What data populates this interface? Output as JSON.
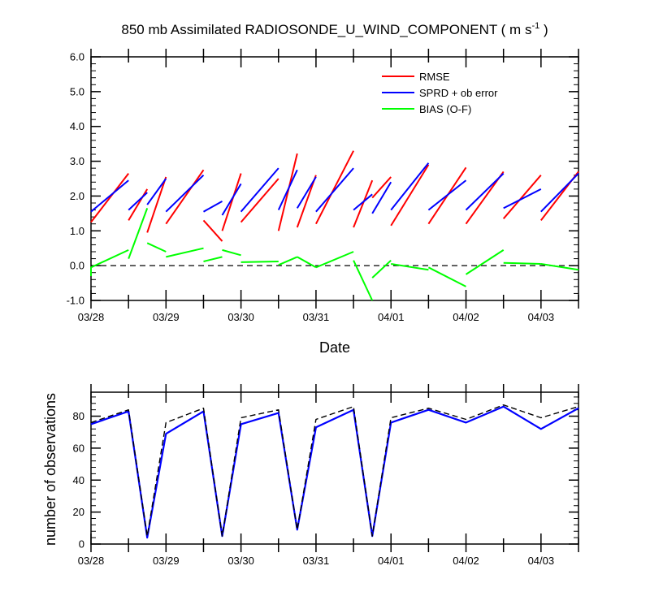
{
  "title_main": "850 mb Assimilated RADIOSONDE_U_WIND_COMPONENT ( m s",
  "title_sup": "-1",
  "title_end": " )",
  "chart_data": [
    {
      "type": "line",
      "xlabel": "Date",
      "ylabel": "",
      "x_ticks": [
        "03/28",
        "03/29",
        "03/30",
        "03/31",
        "04/01",
        "04/02",
        "04/03"
      ],
      "xlim": [
        0,
        6.5
      ],
      "ylim": [
        -1.0,
        6.0
      ],
      "y_ticks": [
        "-1.0",
        "0.0",
        "1.0",
        "2.0",
        "3.0",
        "4.0",
        "5.0",
        "6.0"
      ],
      "legend_position": "top-right",
      "zero_line": true,
      "series": [
        {
          "name": "RMSE",
          "color": "#ff0000",
          "segments": [
            [
              [
                0,
                1.25
              ],
              [
                0.5,
                2.65
              ]
            ],
            [
              [
                0.5,
                1.3
              ],
              [
                0.75,
                2.2
              ]
            ],
            [
              [
                0.75,
                0.95
              ],
              [
                1.0,
                2.55
              ]
            ],
            [
              [
                1.0,
                1.2
              ],
              [
                1.5,
                2.75
              ]
            ],
            [
              [
                1.5,
                1.3
              ],
              [
                1.75,
                0.7
              ]
            ],
            [
              [
                1.75,
                1.0
              ],
              [
                2.0,
                2.65
              ]
            ],
            [
              [
                2.0,
                1.25
              ],
              [
                2.5,
                2.5
              ]
            ],
            [
              [
                2.5,
                1.0
              ],
              [
                2.75,
                3.22
              ]
            ],
            [
              [
                2.75,
                1.1
              ],
              [
                3.0,
                2.6
              ]
            ],
            [
              [
                3.0,
                1.2
              ],
              [
                3.5,
                3.3
              ]
            ],
            [
              [
                3.5,
                1.1
              ],
              [
                3.75,
                2.45
              ]
            ],
            [
              [
                3.75,
                1.95
              ],
              [
                4.0,
                2.55
              ]
            ],
            [
              [
                4.0,
                1.15
              ],
              [
                4.5,
                2.9
              ]
            ],
            [
              [
                4.5,
                1.2
              ],
              [
                5.0,
                2.82
              ]
            ],
            [
              [
                5.0,
                1.2
              ],
              [
                5.5,
                2.7
              ]
            ],
            [
              [
                5.5,
                1.35
              ],
              [
                6.0,
                2.6
              ]
            ],
            [
              [
                6.0,
                1.3
              ],
              [
                6.5,
                2.7
              ]
            ]
          ]
        },
        {
          "name": "SPRD + ob error",
          "color": "#0000ff",
          "segments": [
            [
              [
                0,
                1.55
              ],
              [
                0.5,
                2.45
              ]
            ],
            [
              [
                0.5,
                1.6
              ],
              [
                0.75,
                2.1
              ]
            ],
            [
              [
                0.75,
                1.75
              ],
              [
                1.0,
                2.5
              ]
            ],
            [
              [
                1.0,
                1.55
              ],
              [
                1.5,
                2.6
              ]
            ],
            [
              [
                1.5,
                1.55
              ],
              [
                1.75,
                1.85
              ]
            ],
            [
              [
                1.75,
                1.45
              ],
              [
                2.0,
                2.35
              ]
            ],
            [
              [
                2.0,
                1.55
              ],
              [
                2.5,
                2.8
              ]
            ],
            [
              [
                2.5,
                1.6
              ],
              [
                2.75,
                2.75
              ]
            ],
            [
              [
                2.75,
                1.65
              ],
              [
                3.0,
                2.55
              ]
            ],
            [
              [
                3.0,
                1.55
              ],
              [
                3.5,
                2.8
              ]
            ],
            [
              [
                3.5,
                1.6
              ],
              [
                3.75,
                2.05
              ]
            ],
            [
              [
                3.75,
                1.5
              ],
              [
                4.0,
                2.4
              ]
            ],
            [
              [
                4.0,
                1.6
              ],
              [
                4.5,
                2.95
              ]
            ],
            [
              [
                4.5,
                1.6
              ],
              [
                5.0,
                2.45
              ]
            ],
            [
              [
                5.0,
                1.6
              ],
              [
                5.5,
                2.65
              ]
            ],
            [
              [
                5.5,
                1.65
              ],
              [
                6.0,
                2.2
              ]
            ],
            [
              [
                6.0,
                1.55
              ],
              [
                6.5,
                2.65
              ]
            ]
          ]
        },
        {
          "name": "BIAS (O-F)",
          "color": "#00ff00",
          "segments": [
            [
              [
                0,
                -0.3
              ],
              [
                0,
                -0.05
              ],
              [
                0.5,
                0.45
              ]
            ],
            [
              [
                0.5,
                0.2
              ],
              [
                0.75,
                1.65
              ]
            ],
            [
              [
                0.75,
                0.65
              ],
              [
                1.0,
                0.4
              ]
            ],
            [
              [
                1.0,
                0.25
              ],
              [
                1.5,
                0.5
              ]
            ],
            [
              [
                1.5,
                0.12
              ],
              [
                1.75,
                0.25
              ]
            ],
            [
              [
                1.75,
                0.45
              ],
              [
                2.0,
                0.3
              ]
            ],
            [
              [
                2.0,
                0.1
              ],
              [
                2.5,
                0.12
              ]
            ],
            [
              [
                2.5,
                0.02
              ],
              [
                2.75,
                0.25
              ]
            ],
            [
              [
                2.75,
                0.25
              ],
              [
                3.0,
                -0.05
              ]
            ],
            [
              [
                3.0,
                -0.05
              ],
              [
                3.5,
                0.4
              ]
            ],
            [
              [
                3.5,
                0.15
              ],
              [
                3.75,
                -1.0
              ]
            ],
            [
              [
                3.75,
                -0.35
              ],
              [
                4.0,
                0.15
              ]
            ],
            [
              [
                4.0,
                0.05
              ],
              [
                4.5,
                -0.12
              ]
            ],
            [
              [
                4.5,
                -0.05
              ],
              [
                5.0,
                -0.6
              ]
            ],
            [
              [
                5.0,
                -0.25
              ],
              [
                5.5,
                0.45
              ]
            ],
            [
              [
                5.5,
                0.08
              ],
              [
                6.0,
                0.05
              ]
            ],
            [
              [
                6.0,
                0.05
              ],
              [
                6.5,
                -0.12
              ]
            ]
          ]
        }
      ]
    },
    {
      "type": "line",
      "xlabel": "",
      "ylabel": "number of observations",
      "x_ticks": [
        "03/28",
        "03/29",
        "03/30",
        "03/31",
        "04/01",
        "04/02",
        "04/03"
      ],
      "xlim": [
        0,
        6.5
      ],
      "ylim": [
        0,
        95
      ],
      "y_ticks": [
        "0",
        "20",
        "40",
        "60",
        "80"
      ],
      "series": [
        {
          "name": "",
          "color": "#0000ff",
          "style": "solid",
          "x": [
            0,
            0.5,
            0.75,
            1.0,
            1.5,
            1.75,
            2.0,
            2.5,
            2.75,
            3.0,
            3.5,
            3.75,
            4.0,
            4.5,
            5.0,
            5.5,
            6.0,
            6.5
          ],
          "values": [
            75,
            83,
            4,
            69,
            83,
            5,
            75,
            82,
            9,
            73,
            84,
            5,
            76,
            84,
            76,
            86,
            72,
            85
          ]
        },
        {
          "name": "",
          "color": "#000000",
          "style": "dashed",
          "x": [
            0,
            0.5,
            0.75,
            1.0,
            1.5,
            1.75,
            2.0,
            2.5,
            2.75,
            3.0,
            3.5,
            3.75,
            4.0,
            4.5,
            5.0,
            5.5,
            6.0,
            6.5
          ],
          "values": [
            76,
            84,
            5,
            76,
            85,
            5,
            79,
            84,
            9,
            78,
            86,
            5,
            79,
            85,
            78,
            87,
            79,
            86
          ]
        }
      ]
    }
  ]
}
